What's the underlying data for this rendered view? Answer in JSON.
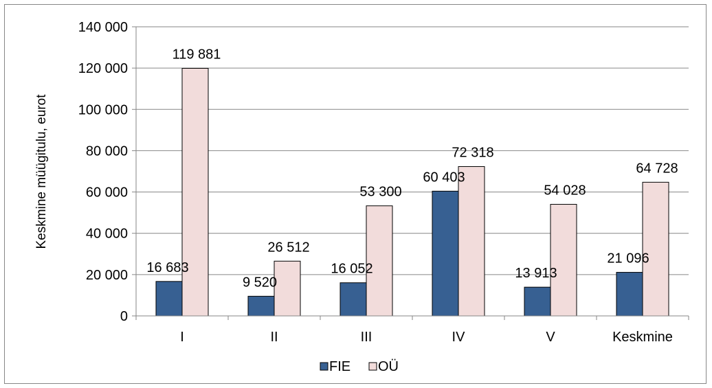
{
  "chart_data": {
    "type": "bar",
    "ylabel": "Keskmine müügitulu, eurot",
    "xlabel": "",
    "title": "",
    "categories": [
      "I",
      "II",
      "III",
      "IV",
      "V",
      "Keskmine"
    ],
    "series": [
      {
        "name": "FIE",
        "values": [
          16683,
          9520,
          16052,
          60403,
          13913,
          21096
        ],
        "labels": [
          "16 683",
          "9 520",
          "16 052",
          "60 403",
          "13 913",
          "21 096"
        ],
        "color": "#376092"
      },
      {
        "name": "OÜ",
        "values": [
          119881,
          26512,
          53300,
          72318,
          54028,
          64728
        ],
        "labels": [
          "119 881",
          "26 512",
          "53 300",
          "72 318",
          "54 028",
          "64 728"
        ],
        "color": "#F2DCDB"
      }
    ],
    "ylim": [
      0,
      140000
    ],
    "yticks": [
      0,
      20000,
      40000,
      60000,
      80000,
      100000,
      120000,
      140000
    ],
    "ytick_labels": [
      "0",
      "20 000",
      "40 000",
      "60 000",
      "80 000",
      "100 000",
      "120 000",
      "140 000"
    ],
    "grid": true,
    "legend_position": "bottom"
  }
}
